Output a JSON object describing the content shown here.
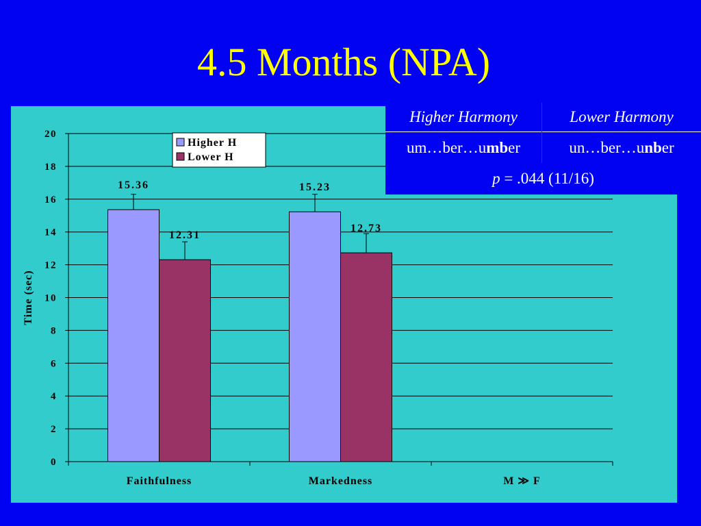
{
  "slide": {
    "title": "4.5 Months (NPA)"
  },
  "table": {
    "headers": [
      "Higher Harmony",
      "Lower Harmony"
    ],
    "row": [
      {
        "pre": "um…ber…u",
        "bold": "mb",
        "post": "er"
      },
      {
        "pre": "un…ber…u",
        "bold": "nb",
        "post": "er"
      }
    ],
    "pvalue_label": "p",
    "pvalue_rest": " = .044 (11/16)"
  },
  "chart_data": {
    "type": "bar",
    "categories": [
      "Faithfulness",
      "Markedness",
      "M ≫ F"
    ],
    "series": [
      {
        "name": "Higher H",
        "values": [
          15.36,
          15.23,
          null
        ],
        "error_top": [
          16.3,
          16.3,
          null
        ],
        "color": "#9999ff"
      },
      {
        "name": "Lower H",
        "values": [
          12.31,
          12.73,
          null
        ],
        "error_top": [
          13.4,
          13.9,
          null
        ],
        "color": "#993366"
      }
    ],
    "data_labels": [
      [
        "15.36",
        "15.23",
        ""
      ],
      [
        "12.31",
        "12.73",
        ""
      ]
    ],
    "ylabel": "Time (sec)",
    "ylim": [
      0,
      20
    ],
    "yticks": [
      0,
      2,
      4,
      6,
      8,
      10,
      12,
      14,
      16,
      18,
      20
    ],
    "grid": true,
    "legend_position": "top-center",
    "background": "#33cccc"
  }
}
